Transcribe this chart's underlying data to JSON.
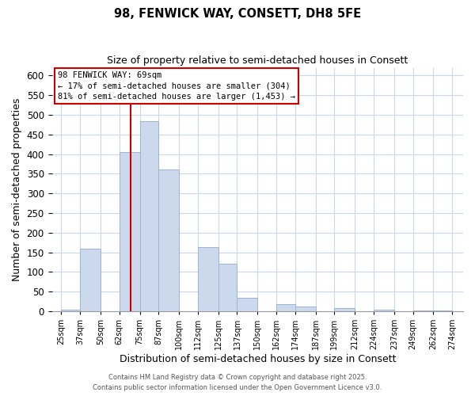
{
  "title": "98, FENWICK WAY, CONSETT, DH8 5FE",
  "subtitle": "Size of property relative to semi-detached houses in Consett",
  "xlabel": "Distribution of semi-detached houses by size in Consett",
  "ylabel": "Number of semi-detached properties",
  "bin_edges": [
    25,
    37,
    50,
    62,
    75,
    87,
    100,
    112,
    125,
    137,
    150,
    162,
    174,
    187,
    199,
    212,
    224,
    237,
    249,
    262,
    274
  ],
  "bar_heights": [
    5,
    160,
    0,
    405,
    485,
    362,
    0,
    163,
    122,
    35,
    0,
    18,
    13,
    0,
    8,
    0,
    4,
    0,
    3,
    2
  ],
  "bar_color": "#ccd9ed",
  "bar_edge_color": "#9ab4d4",
  "vline_x": 69,
  "vline_color": "#cc0000",
  "annotation_box_text": "98 FENWICK WAY: 69sqm\n← 17% of semi-detached houses are smaller (304)\n81% of semi-detached houses are larger (1,453) →",
  "tick_labels": [
    "25sqm",
    "37sqm",
    "50sqm",
    "62sqm",
    "75sqm",
    "87sqm",
    "100sqm",
    "112sqm",
    "125sqm",
    "137sqm",
    "150sqm",
    "162sqm",
    "174sqm",
    "187sqm",
    "199sqm",
    "212sqm",
    "224sqm",
    "237sqm",
    "249sqm",
    "262sqm",
    "274sqm"
  ],
  "tick_positions": [
    25,
    37,
    50,
    62,
    75,
    87,
    100,
    112,
    125,
    137,
    150,
    162,
    174,
    187,
    199,
    212,
    224,
    237,
    249,
    262,
    274
  ],
  "ylim": [
    0,
    620
  ],
  "xlim": [
    19,
    281
  ],
  "yticks": [
    0,
    50,
    100,
    150,
    200,
    250,
    300,
    350,
    400,
    450,
    500,
    550,
    600
  ],
  "footer_line1": "Contains HM Land Registry data © Crown copyright and database right 2025.",
  "footer_line2": "Contains public sector information licensed under the Open Government Licence v3.0.",
  "background_color": "#ffffff",
  "grid_color": "#c8d8e8"
}
